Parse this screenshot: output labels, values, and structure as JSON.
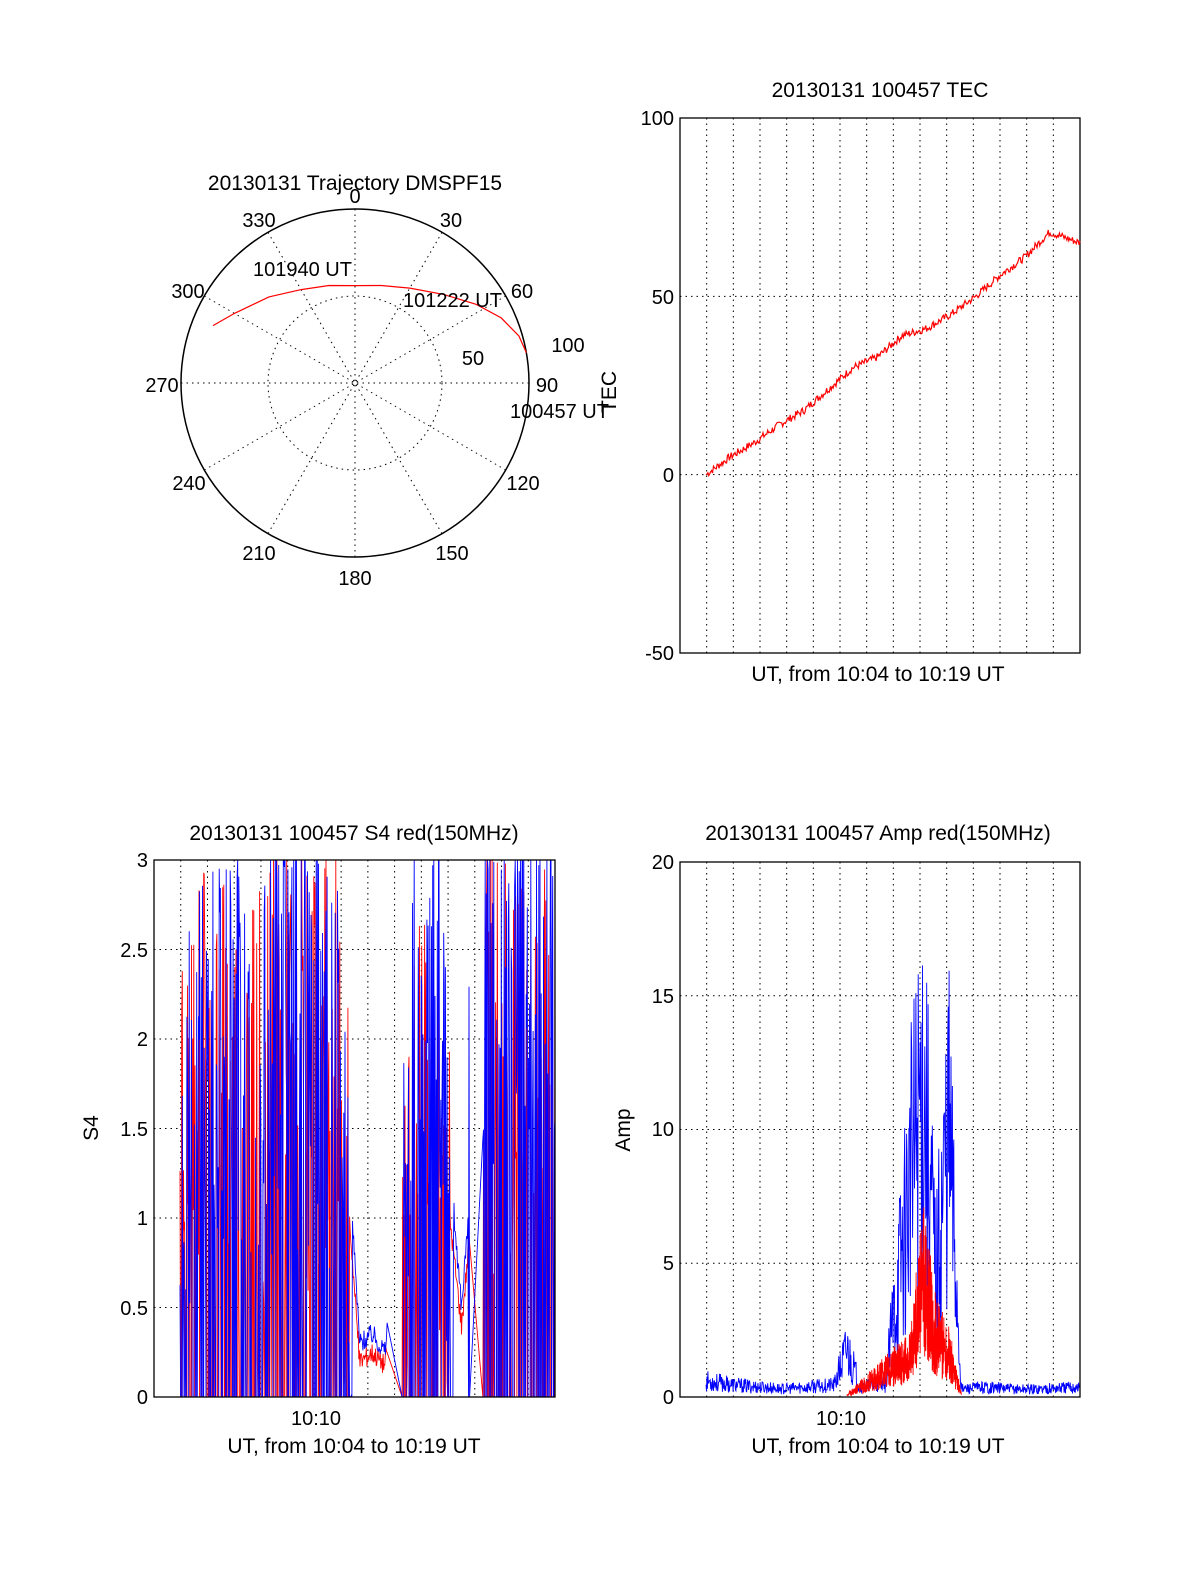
{
  "colors": {
    "red": "#ff0000",
    "blue": "#0000ff",
    "axis": "#000000"
  },
  "chart_data": [
    {
      "type": "polar",
      "title": "20130131 Trajectory DMSPF15",
      "azimuth_labels": [
        "0",
        "30",
        "60",
        "90",
        "120",
        "150",
        "180",
        "210",
        "240",
        "270",
        "300",
        "330"
      ],
      "radial_labels": [
        "50",
        "100"
      ],
      "radial_max": 100,
      "annotations": [
        "101940 UT",
        "101222 UT",
        "100457 UT"
      ],
      "series": [
        {
          "color": "red",
          "points": [
            [
              292,
              88
            ],
            [
              300,
              80
            ],
            [
              315,
              70
            ],
            [
              330,
              62
            ],
            [
              345,
              58
            ],
            [
              0,
              56
            ],
            [
              15,
              58
            ],
            [
              30,
              63
            ],
            [
              45,
              72
            ],
            [
              57,
              83
            ],
            [
              66,
              92
            ],
            [
              74,
              98
            ],
            [
              80,
              100
            ]
          ]
        }
      ]
    },
    {
      "type": "line",
      "title": "20130131 100457 TEC",
      "xlabel": "UT, from 10:04 to 10:19 UT",
      "ylabel": "TEC",
      "xlim": [
        "10:04:57",
        "10:19:40"
      ],
      "ylim": [
        -50,
        100
      ],
      "yticks": [
        "-50",
        "0",
        "50",
        "100"
      ],
      "grid": true,
      "series": [
        {
          "color": "red",
          "x": [
            "10:04:57",
            "10:05:54",
            "10:06:51",
            "10:07:50",
            "10:08:48",
            "10:09:46",
            "10:10:44",
            "10:11:42",
            "10:12:40",
            "10:13:38",
            "10:14:36",
            "10:15:34",
            "10:16:32",
            "10:17:30",
            "10:18:28",
            "10:19:40"
          ],
          "y": [
            0,
            5,
            9,
            14,
            18,
            24,
            30,
            33,
            39,
            41,
            45,
            50,
            56,
            61,
            68,
            65
          ]
        }
      ]
    },
    {
      "type": "line",
      "title": "20130131 100457 S4 red(150MHz)",
      "xlabel": "UT, from 10:04 to 10:19 UT",
      "ylabel": "S4",
      "xtick_labels": [
        "10:10"
      ],
      "ylim": [
        0,
        3
      ],
      "yticks": [
        "0",
        "0.5",
        "1",
        "1.5",
        "2",
        "2.5",
        "3"
      ],
      "grid": true,
      "series": [
        {
          "color": "blue",
          "x": [
            "10:05:00",
            "10:06:00",
            "10:07:00",
            "10:08:00",
            "10:09:00",
            "10:10:00",
            "10:11:00",
            "10:11:30",
            "10:12:00",
            "10:12:30",
            "10:13:00",
            "10:14:00",
            "10:15:00",
            "10:16:00",
            "10:17:00",
            "10:18:00",
            "10:19:00"
          ],
          "y": [
            1.6,
            2.2,
            2.0,
            1.8,
            2.3,
            1.9,
            1.8,
            1.5,
            0.3,
            0.35,
            0.25,
            2.0,
            2.2,
            0.5,
            2.4,
            2.3,
            2.6
          ]
        },
        {
          "color": "red",
          "x": [
            "10:05:00",
            "10:06:00",
            "10:07:00",
            "10:08:00",
            "10:09:00",
            "10:10:00",
            "10:11:00",
            "10:11:30",
            "10:12:00",
            "10:12:30",
            "10:13:00",
            "10:14:00",
            "10:15:00",
            "10:16:00",
            "10:17:00",
            "10:18:00",
            "10:19:00"
          ],
          "y": [
            1.4,
            2.0,
            1.7,
            1.5,
            2.1,
            1.6,
            1.9,
            1.2,
            0.2,
            0.25,
            0.18,
            1.5,
            1.7,
            0.4,
            2.0,
            1.9,
            2.2
          ]
        }
      ]
    },
    {
      "type": "line",
      "title": "20130131 100457 Amp red(150MHz)",
      "xlabel": "UT, from 10:04 to 10:19 UT",
      "ylabel": "Amp",
      "xtick_labels": [
        "10:10"
      ],
      "ylim": [
        0,
        20
      ],
      "yticks": [
        "0",
        "5",
        "10",
        "15",
        "20"
      ],
      "grid": true,
      "series": [
        {
          "color": "blue",
          "x": [
            "10:04:57",
            "10:06:00",
            "10:07:00",
            "10:08:00",
            "10:09:00",
            "10:10:00",
            "10:10:30",
            "10:11:00",
            "10:12:00",
            "10:13:00",
            "10:13:30",
            "10:14:00",
            "10:14:30",
            "10:15:00",
            "10:16:00",
            "10:17:00",
            "10:18:00",
            "10:19:40"
          ],
          "y": [
            0.8,
            0.6,
            0.5,
            0.4,
            0.5,
            0.6,
            2.4,
            0.5,
            0.6,
            11,
            16,
            6,
            14,
            0.4,
            0.5,
            0.4,
            0.4,
            0.5
          ]
        },
        {
          "color": "red",
          "x": [
            "10:10:30",
            "10:13:00",
            "10:13:30",
            "10:14:00",
            "10:14:30",
            "10:15:00"
          ],
          "y": [
            0.1,
            2,
            6,
            3,
            2.2,
            0.1
          ]
        }
      ]
    }
  ]
}
